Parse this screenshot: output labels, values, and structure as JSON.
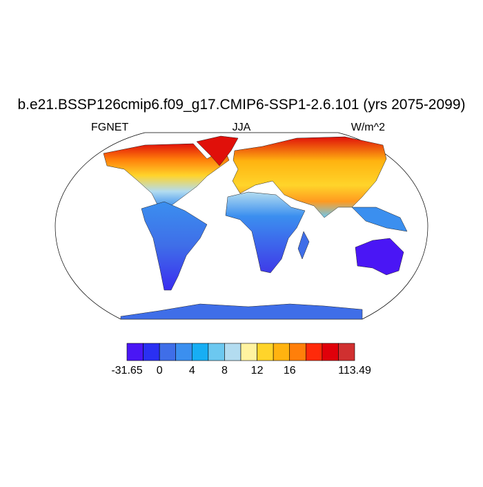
{
  "title": "b.e21.BSSP126cmip6.f09_g17.CMIP6-SSP1-2.6.101 (yrs 2075-2099)",
  "subtitles": {
    "left": "FGNET",
    "center": "JJA",
    "right": "W/m^2"
  },
  "colorbar": {
    "colors": [
      "#4a16f5",
      "#2a30f2",
      "#3f6ee8",
      "#3b8fef",
      "#17aef4",
      "#6cc8f0",
      "#b3dcf0",
      "#fff3a0",
      "#ffd42a",
      "#ffb310",
      "#ff7f0a",
      "#ff2a0a",
      "#e0000a",
      "#d03030"
    ],
    "boundary_labels": [
      "-31.65",
      null,
      "0",
      null,
      "4",
      null,
      "8",
      null,
      "12",
      null,
      "16",
      null,
      null,
      null,
      "113.49"
    ]
  }
}
